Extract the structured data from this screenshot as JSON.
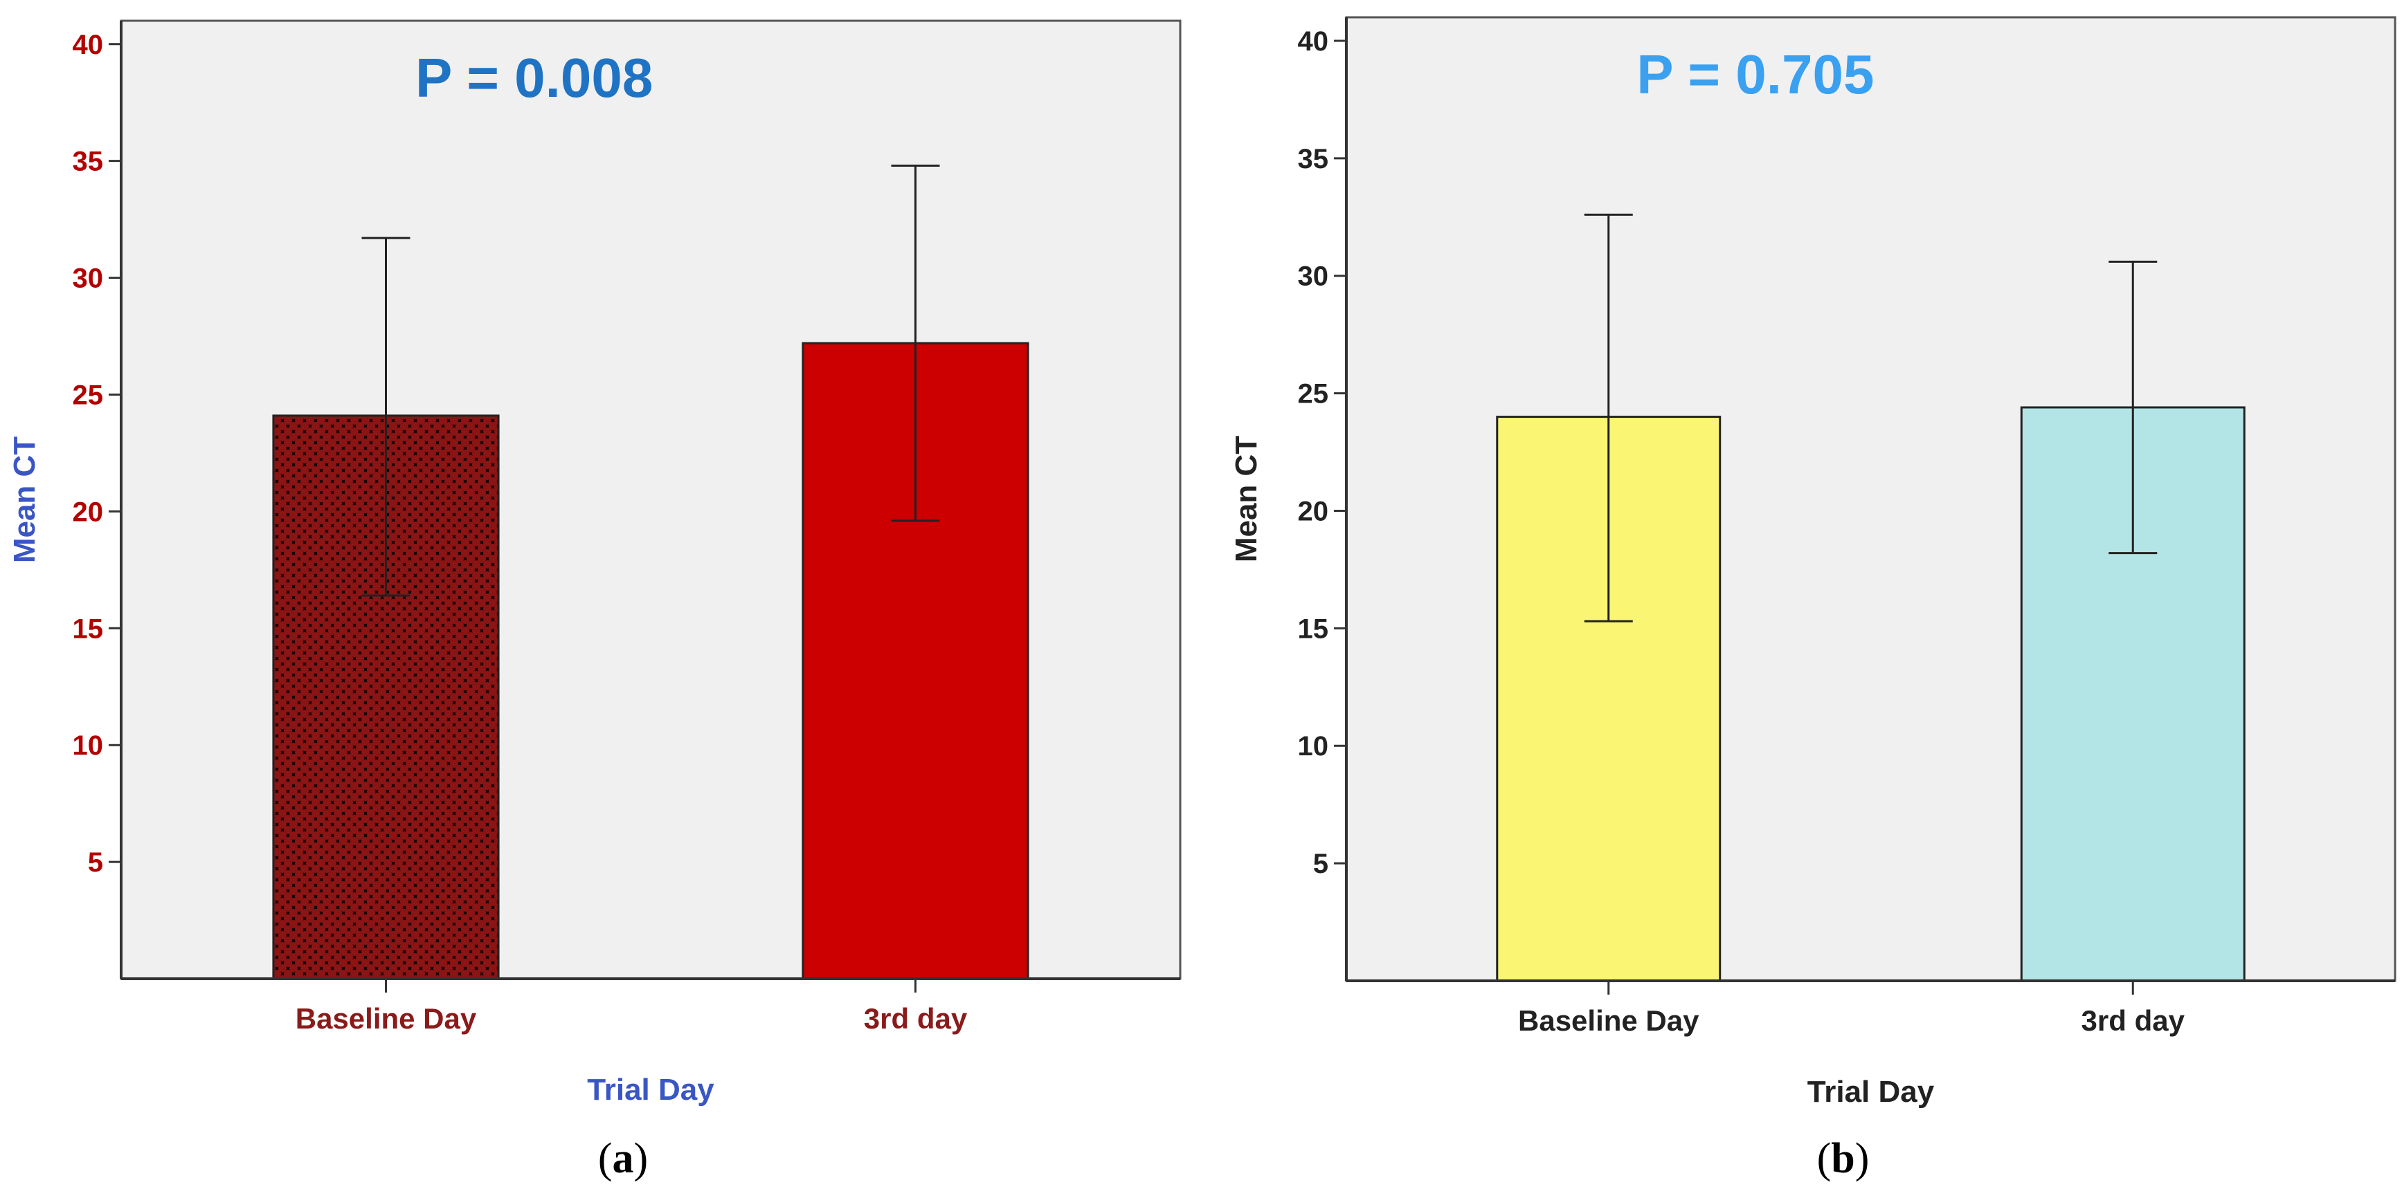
{
  "chart_data": [
    {
      "type": "bar",
      "panel_label": "a",
      "annotation": "P = 0.008",
      "categories": [
        "Baseline Day",
        "3rd day"
      ],
      "values": [
        24.1,
        27.2
      ],
      "error_low": [
        16.4,
        19.6
      ],
      "error_high": [
        31.7,
        34.8
      ],
      "xlabel": "Trial Day",
      "ylabel": "Mean CT",
      "ylim": [
        0,
        41
      ],
      "yticks": [
        5,
        10,
        15,
        20,
        25,
        30,
        35,
        40
      ],
      "colors": {
        "bar_fills": [
          "#6a0d0d",
          "#cc0000"
        ],
        "bar_patterns": [
          "crosshatch",
          "solid"
        ],
        "tick_labels": "#b30000",
        "category_labels": "#8b1a1a",
        "axis_titles": "#3a56c4",
        "annotation": "#1f73c4",
        "plot_bg": "#f0f0f0"
      }
    },
    {
      "type": "bar",
      "panel_label": "b",
      "annotation": "P = 0.705",
      "categories": [
        "Baseline Day",
        "3rd day"
      ],
      "values": [
        24.0,
        24.4
      ],
      "error_low": [
        15.3,
        18.2
      ],
      "error_high": [
        32.6,
        30.6
      ],
      "xlabel": "Trial Day",
      "ylabel": "Mean CT",
      "ylim": [
        0,
        41
      ],
      "yticks": [
        5,
        10,
        15,
        20,
        25,
        30,
        35,
        40
      ],
      "colors": {
        "bar_fills": [
          "#faf674",
          "#b3e5e6"
        ],
        "bar_patterns": [
          "solid",
          "solid"
        ],
        "tick_labels": "#222222",
        "category_labels": "#222222",
        "axis_titles": "#222222",
        "annotation": "#3aa0f0",
        "plot_bg": "#f0f0f0"
      }
    }
  ]
}
